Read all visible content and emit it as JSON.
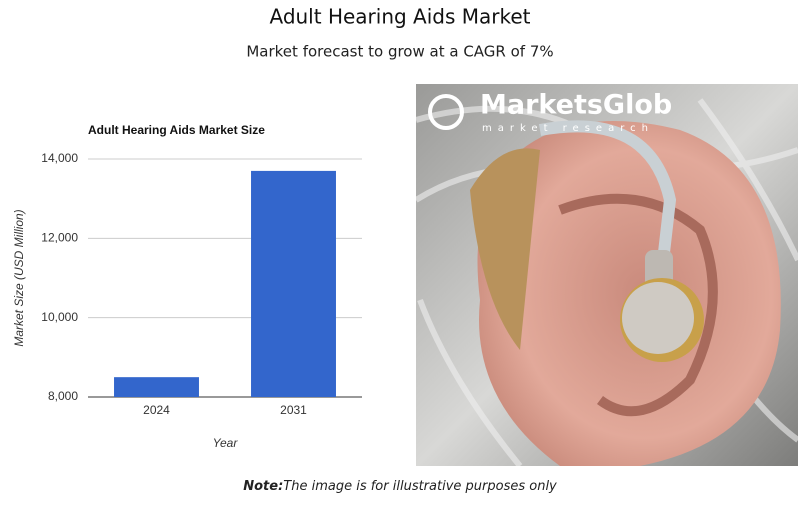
{
  "header": {
    "title": "Adult Hearing Aids Market",
    "subtitle": "Market forecast to grow at a CAGR of 7%"
  },
  "chart_data": {
    "type": "bar",
    "title": "Adult Hearing Aids Market Size",
    "categories": [
      "2024",
      "2031"
    ],
    "values": [
      8500,
      13700
    ],
    "color": "#3366cc",
    "ylim": [
      8000,
      14000
    ],
    "yticks": [
      {
        "value": 8000,
        "label": "8,000"
      },
      {
        "value": 10000,
        "label": "10,000"
      },
      {
        "value": 12000,
        "label": "12,000"
      },
      {
        "value": 14000,
        "label": "14,000"
      }
    ],
    "ylabel": "Market Size (USD Million)",
    "xlabel": "Year",
    "grid": true
  },
  "image": {
    "brand": "MarketsGlob",
    "tagline": "market research"
  },
  "note": {
    "label": "Note:",
    "text": "The image is for illustrative purposes only"
  }
}
